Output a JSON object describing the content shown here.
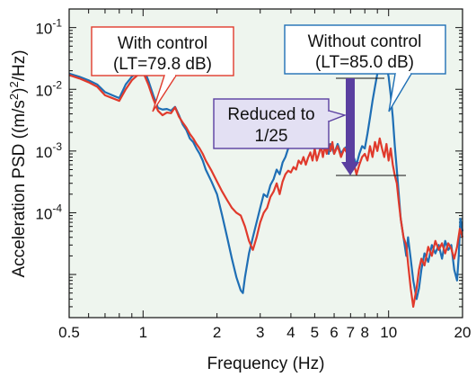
{
  "chart_data": {
    "type": "line",
    "xlabel": "Frequency (Hz)",
    "ylabel_main": "Acceleration PSD  ((m/s",
    "ylabel_sup": "2",
    "ylabel_tail": ")",
    "ylabel_sup2": "2",
    "ylabel_end": "/Hz)",
    "x_scale": "log",
    "y_scale": "log",
    "xlim": [
      0.5,
      20
    ],
    "ylim": [
      2e-06,
      0.2
    ],
    "x_ticks": [
      {
        "v": 0.5,
        "label": "0.5"
      },
      {
        "v": 1,
        "label": "1"
      },
      {
        "v": 2,
        "label": "2"
      },
      {
        "v": 3,
        "label": "3"
      },
      {
        "v": 4,
        "label": "4"
      },
      {
        "v": 5,
        "label": "5"
      },
      {
        "v": 6,
        "label": "6"
      },
      {
        "v": 7,
        "label": "7"
      },
      {
        "v": 8,
        "label": "8"
      },
      {
        "v": 10,
        "label": "10"
      },
      {
        "v": 20,
        "label": "20"
      }
    ],
    "y_ticks": [
      {
        "v": 0.1,
        "base": "10",
        "exp": "-1"
      },
      {
        "v": 0.01,
        "base": "10",
        "exp": "-2"
      },
      {
        "v": 0.001,
        "base": "10",
        "exp": "-3"
      },
      {
        "v": 0.0001,
        "base": "10",
        "exp": "-4"
      }
    ],
    "grid": false,
    "background": "#eef5ee",
    "series": [
      {
        "color": "#1f6fb5",
        "points": [
          [
            0.5,
            0.018
          ],
          [
            0.55,
            0.016
          ],
          [
            0.6,
            0.014
          ],
          [
            0.65,
            0.012
          ],
          [
            0.7,
            0.009
          ],
          [
            0.75,
            0.008
          ],
          [
            0.8,
            0.0072
          ],
          [
            0.85,
            0.012
          ],
          [
            0.9,
            0.016
          ],
          [
            0.95,
            0.019
          ],
          [
            1.0,
            0.023
          ],
          [
            1.05,
            0.014
          ],
          [
            1.1,
            0.008
          ],
          [
            1.15,
            0.005
          ],
          [
            1.2,
            0.0047
          ],
          [
            1.25,
            0.0048
          ],
          [
            1.3,
            0.0045
          ],
          [
            1.35,
            0.0052
          ],
          [
            1.4,
            0.0038
          ],
          [
            1.45,
            0.0027
          ],
          [
            1.5,
            0.0022
          ],
          [
            1.55,
            0.0016
          ],
          [
            1.6,
            0.0014
          ],
          [
            1.65,
            0.0011
          ],
          [
            1.7,
            0.0009
          ],
          [
            1.75,
            0.0007
          ],
          [
            1.8,
            0.0005
          ],
          [
            1.9,
            0.00032
          ],
          [
            2.0,
            0.0002
          ],
          [
            2.1,
            9e-05
          ],
          [
            2.2,
            4e-05
          ],
          [
            2.3,
            1.8e-05
          ],
          [
            2.4,
            9e-06
          ],
          [
            2.5,
            5.5e-06
          ],
          [
            2.55,
            5e-06
          ],
          [
            2.6,
            9e-06
          ],
          [
            2.7,
            2.2e-05
          ],
          [
            2.8,
            4e-05
          ],
          [
            2.9,
            7e-05
          ],
          [
            3.0,
            0.00012
          ],
          [
            3.1,
            0.0002
          ],
          [
            3.2,
            0.00018
          ],
          [
            3.3,
            0.00028
          ],
          [
            3.4,
            0.00035
          ],
          [
            3.5,
            0.0005
          ],
          [
            3.6,
            0.00042
          ],
          [
            3.7,
            0.00065
          ],
          [
            3.8,
            0.0008
          ],
          [
            3.9,
            0.0011
          ],
          [
            4.0,
            0.0019
          ],
          [
            4.1,
            0.0015
          ],
          [
            4.2,
            0.0022
          ],
          [
            4.3,
            0.0018
          ],
          [
            4.4,
            0.0013
          ],
          [
            4.5,
            0.0016
          ],
          [
            4.6,
            0.0012
          ],
          [
            4.7,
            0.0024
          ],
          [
            4.8,
            0.0016
          ],
          [
            4.9,
            0.0013
          ],
          [
            5.0,
            0.0026
          ],
          [
            5.1,
            0.0014
          ],
          [
            5.2,
            0.0019
          ],
          [
            5.3,
            0.0013
          ],
          [
            5.4,
            0.0011
          ],
          [
            5.5,
            0.0016
          ],
          [
            5.6,
            0.0012
          ],
          [
            5.7,
            0.0009
          ],
          [
            5.8,
            0.0013
          ],
          [
            5.9,
            0.0011
          ],
          [
            6.0,
            0.0009
          ],
          [
            6.2,
            0.0013
          ],
          [
            6.4,
            0.0009
          ],
          [
            6.6,
            0.0011
          ],
          [
            6.8,
            0.0012
          ],
          [
            7.0,
            0.0011
          ],
          [
            7.2,
            0.0008
          ],
          [
            7.4,
            0.0006
          ],
          [
            7.6,
            0.0009
          ],
          [
            7.8,
            0.0012
          ],
          [
            8.0,
            0.0011
          ],
          [
            8.2,
            0.0019
          ],
          [
            8.4,
            0.0035
          ],
          [
            8.6,
            0.0065
          ],
          [
            8.8,
            0.011
          ],
          [
            9.0,
            0.018
          ],
          [
            9.2,
            0.028
          ],
          [
            9.4,
            0.045
          ],
          [
            9.6,
            0.032
          ],
          [
            9.8,
            0.024
          ],
          [
            10.0,
            0.016
          ],
          [
            10.2,
            0.008
          ],
          [
            10.4,
            0.0035
          ],
          [
            10.6,
            0.0012
          ],
          [
            10.8,
            0.0005
          ],
          [
            11.0,
            0.0002
          ],
          [
            11.2,
            8e-05
          ],
          [
            11.5,
            4e-05
          ],
          [
            11.8,
            2e-05
          ],
          [
            12.0,
            4e-05
          ],
          [
            12.3,
            1.8e-05
          ],
          [
            12.6,
            8e-06
          ],
          [
            13.0,
            4e-06
          ],
          [
            13.3,
            6e-06
          ],
          [
            13.6,
            1.2e-05
          ],
          [
            14.0,
            2.2e-05
          ],
          [
            14.5,
            1.6e-05
          ],
          [
            15.0,
            3e-05
          ],
          [
            15.5,
            2.2e-05
          ],
          [
            16.0,
            3e-05
          ],
          [
            16.5,
            1.8e-05
          ],
          [
            17.0,
            3.5e-05
          ],
          [
            17.5,
            2.5e-05
          ],
          [
            18.0,
            3e-05
          ],
          [
            18.5,
            1.2e-05
          ],
          [
            19.0,
            8e-06
          ],
          [
            19.3,
            2e-05
          ],
          [
            19.6,
            8e-05
          ],
          [
            20.0,
            5e-05
          ]
        ]
      },
      {
        "color": "#e03a2c",
        "points": [
          [
            0.5,
            0.017
          ],
          [
            0.55,
            0.015
          ],
          [
            0.6,
            0.013
          ],
          [
            0.65,
            0.011
          ],
          [
            0.7,
            0.008
          ],
          [
            0.75,
            0.0072
          ],
          [
            0.8,
            0.0065
          ],
          [
            0.85,
            0.01
          ],
          [
            0.9,
            0.014
          ],
          [
            0.95,
            0.017
          ],
          [
            1.0,
            0.019
          ],
          [
            1.05,
            0.012
          ],
          [
            1.1,
            0.007
          ],
          [
            1.15,
            0.0045
          ],
          [
            1.2,
            0.0038
          ],
          [
            1.25,
            0.0042
          ],
          [
            1.3,
            0.0041
          ],
          [
            1.35,
            0.0051
          ],
          [
            1.4,
            0.0036
          ],
          [
            1.45,
            0.0029
          ],
          [
            1.5,
            0.0024
          ],
          [
            1.55,
            0.0019
          ],
          [
            1.6,
            0.0016
          ],
          [
            1.65,
            0.0013
          ],
          [
            1.7,
            0.0011
          ],
          [
            1.75,
            0.0009
          ],
          [
            1.8,
            0.0007
          ],
          [
            1.9,
            0.00048
          ],
          [
            2.0,
            0.00032
          ],
          [
            2.1,
            0.00022
          ],
          [
            2.2,
            0.00016
          ],
          [
            2.3,
            0.00012
          ],
          [
            2.4,
            0.0001
          ],
          [
            2.5,
            9e-05
          ],
          [
            2.6,
            6e-05
          ],
          [
            2.7,
            3.5e-05
          ],
          [
            2.8,
            2.5e-05
          ],
          [
            2.9,
            4e-05
          ],
          [
            3.0,
            7e-05
          ],
          [
            3.1,
            0.0001
          ],
          [
            3.2,
            0.00012
          ],
          [
            3.3,
            0.00018
          ],
          [
            3.4,
            0.00022
          ],
          [
            3.5,
            0.0003
          ],
          [
            3.6,
            0.0002
          ],
          [
            3.7,
            0.00032
          ],
          [
            3.8,
            0.00042
          ],
          [
            3.9,
            0.00048
          ],
          [
            4.0,
            0.00045
          ],
          [
            4.1,
            0.00055
          ],
          [
            4.2,
            0.0005
          ],
          [
            4.3,
            0.0007
          ],
          [
            4.4,
            0.00062
          ],
          [
            4.5,
            0.0008
          ],
          [
            4.6,
            0.0006
          ],
          [
            4.7,
            0.00078
          ],
          [
            4.8,
            0.00095
          ],
          [
            4.9,
            0.0007
          ],
          [
            5.0,
            0.0011
          ],
          [
            5.1,
            0.0007
          ],
          [
            5.2,
            0.0009
          ],
          [
            5.3,
            0.0012
          ],
          [
            5.4,
            0.0008
          ],
          [
            5.5,
            0.0012
          ],
          [
            5.6,
            0.0009
          ],
          [
            5.7,
            0.0013
          ],
          [
            5.8,
            0.001
          ],
          [
            5.9,
            0.0014
          ],
          [
            6.0,
            0.0009
          ],
          [
            6.2,
            0.0012
          ],
          [
            6.4,
            0.0008
          ],
          [
            6.6,
            0.0011
          ],
          [
            6.8,
            0.0009
          ],
          [
            7.0,
            0.0011
          ],
          [
            7.2,
            0.00065
          ],
          [
            7.4,
            0.00042
          ],
          [
            7.6,
            0.0006
          ],
          [
            7.8,
            0.0008
          ],
          [
            8.0,
            0.0009
          ],
          [
            8.2,
            0.0007
          ],
          [
            8.4,
            0.0012
          ],
          [
            8.6,
            0.0008
          ],
          [
            8.8,
            0.0014
          ],
          [
            9.0,
            0.001
          ],
          [
            9.2,
            0.0016
          ],
          [
            9.4,
            0.0011
          ],
          [
            9.6,
            0.0008
          ],
          [
            9.8,
            0.0013
          ],
          [
            10.0,
            0.0007
          ],
          [
            10.2,
            0.0011
          ],
          [
            10.4,
            0.0006
          ],
          [
            10.6,
            0.0004
          ],
          [
            10.8,
            0.0003
          ],
          [
            11.0,
            0.00015
          ],
          [
            11.2,
            8e-05
          ],
          [
            11.5,
            4e-05
          ],
          [
            11.8,
            3e-05
          ],
          [
            12.0,
            1.5e-05
          ],
          [
            12.3,
            6e-06
          ],
          [
            12.6,
            3e-06
          ],
          [
            13.0,
            6e-06
          ],
          [
            13.3,
            1.2e-05
          ],
          [
            13.6,
            1.8e-05
          ],
          [
            14.0,
            1.4e-05
          ],
          [
            14.5,
            2.8e-05
          ],
          [
            15.0,
            2e-05
          ],
          [
            15.5,
            3.5e-05
          ],
          [
            16.0,
            2.5e-05
          ],
          [
            16.5,
            3.2e-05
          ],
          [
            17.0,
            2.2e-05
          ],
          [
            17.5,
            3.2e-05
          ],
          [
            18.0,
            2.6e-05
          ],
          [
            18.5,
            1.8e-05
          ],
          [
            19.0,
            2.8e-05
          ],
          [
            19.5,
            5.5e-05
          ],
          [
            20.0,
            4e-05
          ]
        ]
      }
    ],
    "annotations": {
      "with_control": {
        "line1": "With control",
        "line2": "(LT=79.8 dB)",
        "color": "#e03a2c"
      },
      "without_control": {
        "line1": "Without control",
        "line2": "(LT=85.0 dB)",
        "color": "#1f6fb5"
      },
      "reduced": {
        "line1": "Reduced to",
        "line2": "1/25",
        "arrow_color": "#5a3fa0",
        "box_fill": "#e3e0f3",
        "box_stroke": "#5a3fa0"
      }
    }
  }
}
